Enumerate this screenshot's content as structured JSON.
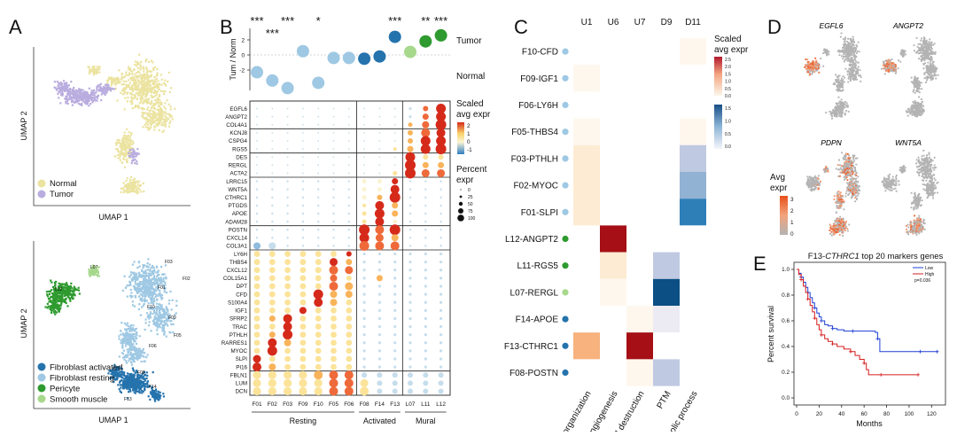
{
  "panel_letters": [
    "A",
    "B",
    "C",
    "D",
    "E"
  ],
  "panelA": {
    "top": {
      "x_label": "UMAP 1",
      "y_label": "UMAP 2",
      "legend": [
        {
          "label": "Normal",
          "color": "#ebe3a0"
        },
        {
          "label": "Tumor",
          "color": "#b9addf"
        }
      ]
    },
    "bottom": {
      "x_label": "UMAP 1",
      "y_label": "UMAP 2",
      "cluster_labels": [
        "L07",
        "L12",
        "F03",
        "F01",
        "F02",
        "F10",
        "F09",
        "F05",
        "F06",
        "F08",
        "F14",
        "F13"
      ],
      "legend": [
        {
          "label": "Fibroblast activated",
          "color": "#2573ad"
        },
        {
          "label": "Fibroblast resting",
          "color": "#9ec8e3"
        },
        {
          "label": "Pericyte",
          "color": "#2e9a2f"
        },
        {
          "label": "Smooth muscle",
          "color": "#a7d88c"
        }
      ]
    }
  },
  "panelB": {
    "columns": [
      "F01",
      "F02",
      "F03",
      "F09",
      "F10",
      "F05",
      "F06",
      "F08",
      "F14",
      "F13",
      "L07",
      "L11",
      "L12"
    ],
    "column_groups": [
      {
        "label": "Resting",
        "span": [
          0,
          6
        ]
      },
      {
        "label": "Activated",
        "span": [
          7,
          9
        ]
      },
      {
        "label": "Mural",
        "span": [
          10,
          12
        ]
      }
    ],
    "tumor_norm_axis": "Tum / Norm",
    "top_row_labels": [
      "Tumor",
      "Normal"
    ],
    "yticks": [
      2,
      0,
      -2
    ],
    "log_ratio": [
      -2.3,
      -3.4,
      -4.4,
      0.5,
      -3.7,
      -0.4,
      -0.4,
      -0.5,
      -0.2,
      2.4,
      0.4,
      1.8,
      2.6
    ],
    "significance": [
      "***",
      "***",
      "***",
      "",
      "*",
      "",
      "",
      "",
      "",
      "***",
      "",
      "**",
      "***"
    ],
    "genes": [
      "EGFL6",
      "ANGPT2",
      "COL4A1",
      "KCNJ8",
      "CSPG4",
      "RGS5",
      "DES",
      "RERGL",
      "ACTA2",
      "LRRC15",
      "WNT5A",
      "CTHRC1",
      "PTGDS",
      "APOE",
      "ADAM28",
      "POSTN",
      "CXCL14",
      "COL3A1",
      "LY6H",
      "THBS4",
      "CXCL12",
      "COL15A1",
      "DPT",
      "CFD",
      "S100A4",
      "IGF1",
      "SFRP2",
      "TRAC",
      "PTHLH",
      "RARRES1",
      "MYOC",
      "SLPI",
      "PI16",
      "FBLN1",
      "LUM",
      "DCN"
    ],
    "color_legend": {
      "title": "Scaled avg expr",
      "ticks": [
        "2",
        "1",
        "0",
        "-1"
      ]
    },
    "size_legend": {
      "title": "Percent expr",
      "ticks": [
        "0",
        "25",
        "50",
        "75",
        "100"
      ]
    }
  },
  "panelC": {
    "columns": [
      "U1",
      "U6",
      "U7",
      "D9",
      "D11"
    ],
    "rows": [
      {
        "label": "F10-CFD",
        "color": "#9ec8e3"
      },
      {
        "label": "F09-IGF1",
        "color": "#9ec8e3"
      },
      {
        "label": "F06-LY6H",
        "color": "#9ec8e3"
      },
      {
        "label": "F05-THBS4",
        "color": "#9ec8e3"
      },
      {
        "label": "F03-PTHLH",
        "color": "#9ec8e3"
      },
      {
        "label": "F02-MYOC",
        "color": "#9ec8e3"
      },
      {
        "label": "F01-SLPI",
        "color": "#9ec8e3"
      },
      {
        "label": "L12-ANGPT2",
        "color": "#2e9a2f"
      },
      {
        "label": "L11-RGS5",
        "color": "#2e9a2f"
      },
      {
        "label": "L07-RERGL",
        "color": "#a7d88c"
      },
      {
        "label": "F14-APOE",
        "color": "#2573ad"
      },
      {
        "label": "F13-CTHRC1",
        "color": "#2573ad"
      },
      {
        "label": "F08-POSTN",
        "color": "#2573ad"
      }
    ],
    "values": [
      [
        0,
        0,
        0,
        0,
        0.04
      ],
      [
        0.06,
        0,
        0,
        0,
        0.02
      ],
      [
        0,
        0,
        0,
        0,
        0
      ],
      [
        0.04,
        0,
        0,
        0,
        0.04
      ],
      [
        0.12,
        0,
        0,
        0,
        -0.35
      ],
      [
        0.14,
        0,
        0,
        0,
        -0.6
      ],
      [
        0.14,
        0,
        0,
        0,
        -1.3
      ],
      [
        0,
        2.6,
        0,
        0,
        0
      ],
      [
        0,
        0.15,
        0,
        -0.3,
        0
      ],
      [
        0,
        0.04,
        0,
        -1.6,
        0
      ],
      [
        0,
        0,
        0.08,
        -0.12,
        0
      ],
      [
        0.8,
        0,
        2.6,
        0,
        0
      ],
      [
        0,
        0,
        0.05,
        -0.3,
        0
      ]
    ],
    "categories": [
      "ECM organization",
      "Angiogenesis",
      "ECM destruction",
      "PTM",
      "Metabolic process"
    ],
    "color_legend": {
      "title": "Scaled avg expr",
      "pos_ticks": [
        "2.5",
        "2.0",
        "1.5",
        "1.0",
        "0.5",
        "0.0"
      ],
      "neg_ticks": [
        "1.5",
        "1.0",
        "0.5",
        "0.0"
      ]
    }
  },
  "panelD": {
    "genes": [
      "EGFL6",
      "ANGPT2",
      "PDPN",
      "WNT5A"
    ],
    "legend_title": "Avg expr",
    "legend_ticks": [
      "3",
      "2",
      "1",
      "0"
    ]
  },
  "panelE": {
    "title_prefix": "F13-",
    "title_gene": "CTHRC1",
    "title_suffix": " top 20 markers genes",
    "chart_data": {
      "type": "line",
      "title": "F13-CTHRC1 top 20 markers genes",
      "xlabel": "Months",
      "ylabel": "Percent survival",
      "xlim": [
        0,
        130
      ],
      "ylim": [
        0,
        1.0
      ],
      "xticks": [
        0,
        20,
        40,
        60,
        80,
        100,
        120
      ],
      "yticks": [
        0,
        0.2,
        0.4,
        0.6,
        0.8,
        1.0
      ],
      "series": [
        {
          "name": "Low",
          "color": "#1f3fd6",
          "points": [
            [
              0,
              1
            ],
            [
              2,
              0.97
            ],
            [
              4,
              0.94
            ],
            [
              6,
              0.9
            ],
            [
              8,
              0.86
            ],
            [
              10,
              0.82
            ],
            [
              12,
              0.78
            ],
            [
              14,
              0.74
            ],
            [
              16,
              0.7
            ],
            [
              18,
              0.66
            ],
            [
              20,
              0.63
            ],
            [
              22,
              0.6
            ],
            [
              25,
              0.57
            ],
            [
              28,
              0.56
            ],
            [
              32,
              0.54
            ],
            [
              36,
              0.53
            ],
            [
              42,
              0.52
            ],
            [
              50,
              0.52
            ],
            [
              60,
              0.52
            ],
            [
              70,
              0.51
            ],
            [
              72,
              0.46
            ],
            [
              74,
              0.36
            ],
            [
              90,
              0.36
            ],
            [
              110,
              0.36
            ],
            [
              125,
              0.36
            ]
          ]
        },
        {
          "name": "High",
          "color": "#d61c1c",
          "points": [
            [
              0,
              1
            ],
            [
              2,
              0.96
            ],
            [
              4,
              0.92
            ],
            [
              6,
              0.87
            ],
            [
              8,
              0.82
            ],
            [
              10,
              0.77
            ],
            [
              12,
              0.72
            ],
            [
              14,
              0.67
            ],
            [
              16,
              0.62
            ],
            [
              18,
              0.57
            ],
            [
              20,
              0.53
            ],
            [
              22,
              0.49
            ],
            [
              25,
              0.46
            ],
            [
              28,
              0.44
            ],
            [
              32,
              0.42
            ],
            [
              36,
              0.4
            ],
            [
              42,
              0.38
            ],
            [
              48,
              0.36
            ],
            [
              52,
              0.33
            ],
            [
              56,
              0.3
            ],
            [
              60,
              0.27
            ],
            [
              62,
              0.22
            ],
            [
              64,
              0.18
            ],
            [
              75,
              0.18
            ],
            [
              90,
              0.18
            ],
            [
              108,
              0.18
            ]
          ]
        }
      ],
      "legend": {
        "placement": "top-right",
        "entries": [
          "Low",
          "High"
        ]
      },
      "annotation": "p=0.036"
    }
  }
}
